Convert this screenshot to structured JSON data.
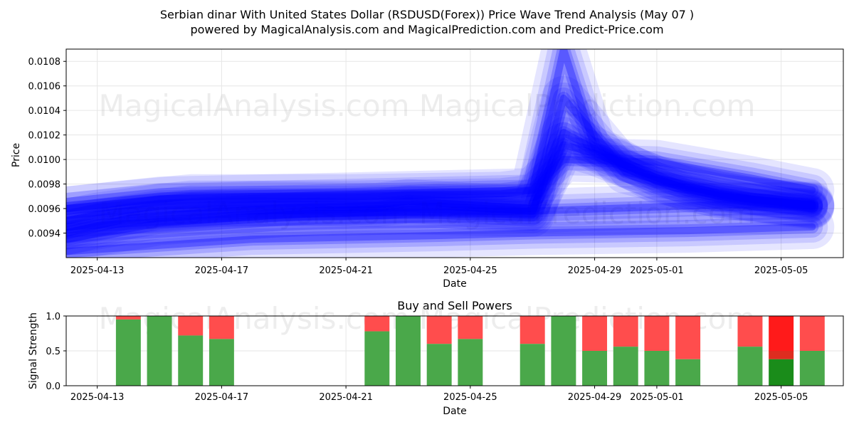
{
  "title_line1": "Serbian dinar With United States Dollar (RSDUSD(Forex)) Price Wave Trend Analysis (May 07 )",
  "title_line2": "powered by MagicalAnalysis.com and MagicalPrediction.com and Predict-Price.com",
  "watermark": "MagicalAnalysis.com    MagicalPrediction.com",
  "chart_data": [
    {
      "type": "area",
      "xlabel": "Date",
      "ylabel": "Price",
      "xlim": [
        "2025-04-12",
        "2025-05-07"
      ],
      "ylim": [
        0.0092,
        0.0109
      ],
      "x_ticks": [
        "2025-04-13",
        "2025-04-17",
        "2025-04-21",
        "2025-04-25",
        "2025-04-29",
        "2025-05-01",
        "2025-05-05"
      ],
      "y_ticks": [
        "0.0094",
        "0.0096",
        "0.0098",
        "0.0100",
        "0.0102",
        "0.0104",
        "0.0106",
        "0.0108"
      ],
      "grid": true,
      "series": [
        {
          "x": [
            "2025-04-12",
            "2025-04-13",
            "2025-04-15",
            "2025-04-18",
            "2025-04-22",
            "2025-04-23",
            "2025-04-25",
            "2025-04-27",
            "2025-04-28",
            "2025-04-29",
            "2025-05-01",
            "2025-05-03",
            "2025-05-04",
            "2025-05-06"
          ],
          "y": [
            0.0095,
            0.00955,
            0.00962,
            0.00964,
            0.00963,
            0.00966,
            0.00963,
            0.0096,
            0.01012,
            0.01005,
            0.00985,
            0.00972,
            0.00968,
            0.00962
          ]
        },
        {
          "x": [
            "2025-04-12",
            "2025-04-14",
            "2025-04-17",
            "2025-04-21",
            "2025-04-24",
            "2025-04-27",
            "2025-04-28",
            "2025-04-30",
            "2025-05-02",
            "2025-05-04",
            "2025-05-06"
          ],
          "y": [
            0.0094,
            0.00952,
            0.00958,
            0.00959,
            0.00962,
            0.00958,
            0.01022,
            0.00995,
            0.00975,
            0.00967,
            0.00961
          ]
        },
        {
          "x": [
            "2025-04-12",
            "2025-04-15",
            "2025-04-19",
            "2025-04-23",
            "2025-04-27",
            "2025-04-28",
            "2025-04-30",
            "2025-05-03",
            "2025-05-06"
          ],
          "y": [
            0.00935,
            0.00948,
            0.00955,
            0.00957,
            0.00955,
            0.0105,
            0.0099,
            0.0097,
            0.00963
          ]
        },
        {
          "x": [
            "2025-04-12",
            "2025-04-16",
            "2025-04-21",
            "2025-04-26",
            "2025-04-27",
            "2025-04-28",
            "2025-04-29",
            "2025-05-01",
            "2025-05-04",
            "2025-05-06"
          ],
          "y": [
            0.0096,
            0.0097,
            0.0097,
            0.00972,
            0.00975,
            0.0109,
            0.0101,
            0.00982,
            0.00968,
            0.00962
          ]
        },
        {
          "x": [
            "2025-04-12",
            "2025-04-18",
            "2025-04-24",
            "2025-04-27",
            "2025-05-02",
            "2025-05-06"
          ],
          "y": [
            0.00925,
            0.00935,
            0.00938,
            0.0094,
            0.00942,
            0.00945
          ]
        },
        {
          "x": [
            "2025-04-12",
            "2025-04-20",
            "2025-04-27",
            "2025-05-03",
            "2025-05-06"
          ],
          "y": [
            0.00945,
            0.00956,
            0.00958,
            0.00963,
            0.00964
          ]
        },
        {
          "x": [
            "2025-04-12",
            "2025-04-15",
            "2025-04-22",
            "2025-04-27",
            "2025-04-28",
            "2025-05-01",
            "2025-05-04",
            "2025-05-06"
          ],
          "y": [
            0.0096,
            0.00968,
            0.00972,
            0.00975,
            0.01,
            0.00998,
            0.00985,
            0.00975
          ]
        }
      ]
    },
    {
      "type": "bar",
      "title": "Buy and Sell Powers",
      "xlabel": "Date",
      "ylabel": "Signal Strength",
      "xlim": [
        "2025-04-12",
        "2025-05-07"
      ],
      "ylim": [
        0,
        1
      ],
      "x_ticks": [
        "2025-04-13",
        "2025-04-17",
        "2025-04-21",
        "2025-04-25",
        "2025-04-29",
        "2025-05-01",
        "2025-05-05"
      ],
      "y_ticks": [
        "0.0",
        "0.5",
        "1.0"
      ],
      "grid": true,
      "colors": {
        "buy": "#4aa84a",
        "sell": "#ff4d4d",
        "buy_highlight": "#1a8c1a",
        "sell_highlight": "#ff1a1a"
      },
      "dates": [
        "2025-04-14",
        "2025-04-15",
        "2025-04-16",
        "2025-04-17",
        "2025-04-22",
        "2025-04-23",
        "2025-04-24",
        "2025-04-25",
        "2025-04-27",
        "2025-04-28",
        "2025-04-29",
        "2025-04-30",
        "2025-05-01",
        "2025-05-02",
        "2025-05-04",
        "2025-05-05",
        "2025-05-06"
      ],
      "buy": [
        0.95,
        1.0,
        0.72,
        0.67,
        0.78,
        1.0,
        0.6,
        0.67,
        0.6,
        1.0,
        0.5,
        0.56,
        0.5,
        0.38,
        0.56,
        0.38,
        0.5
      ],
      "highlight_date": "2025-05-05"
    }
  ]
}
